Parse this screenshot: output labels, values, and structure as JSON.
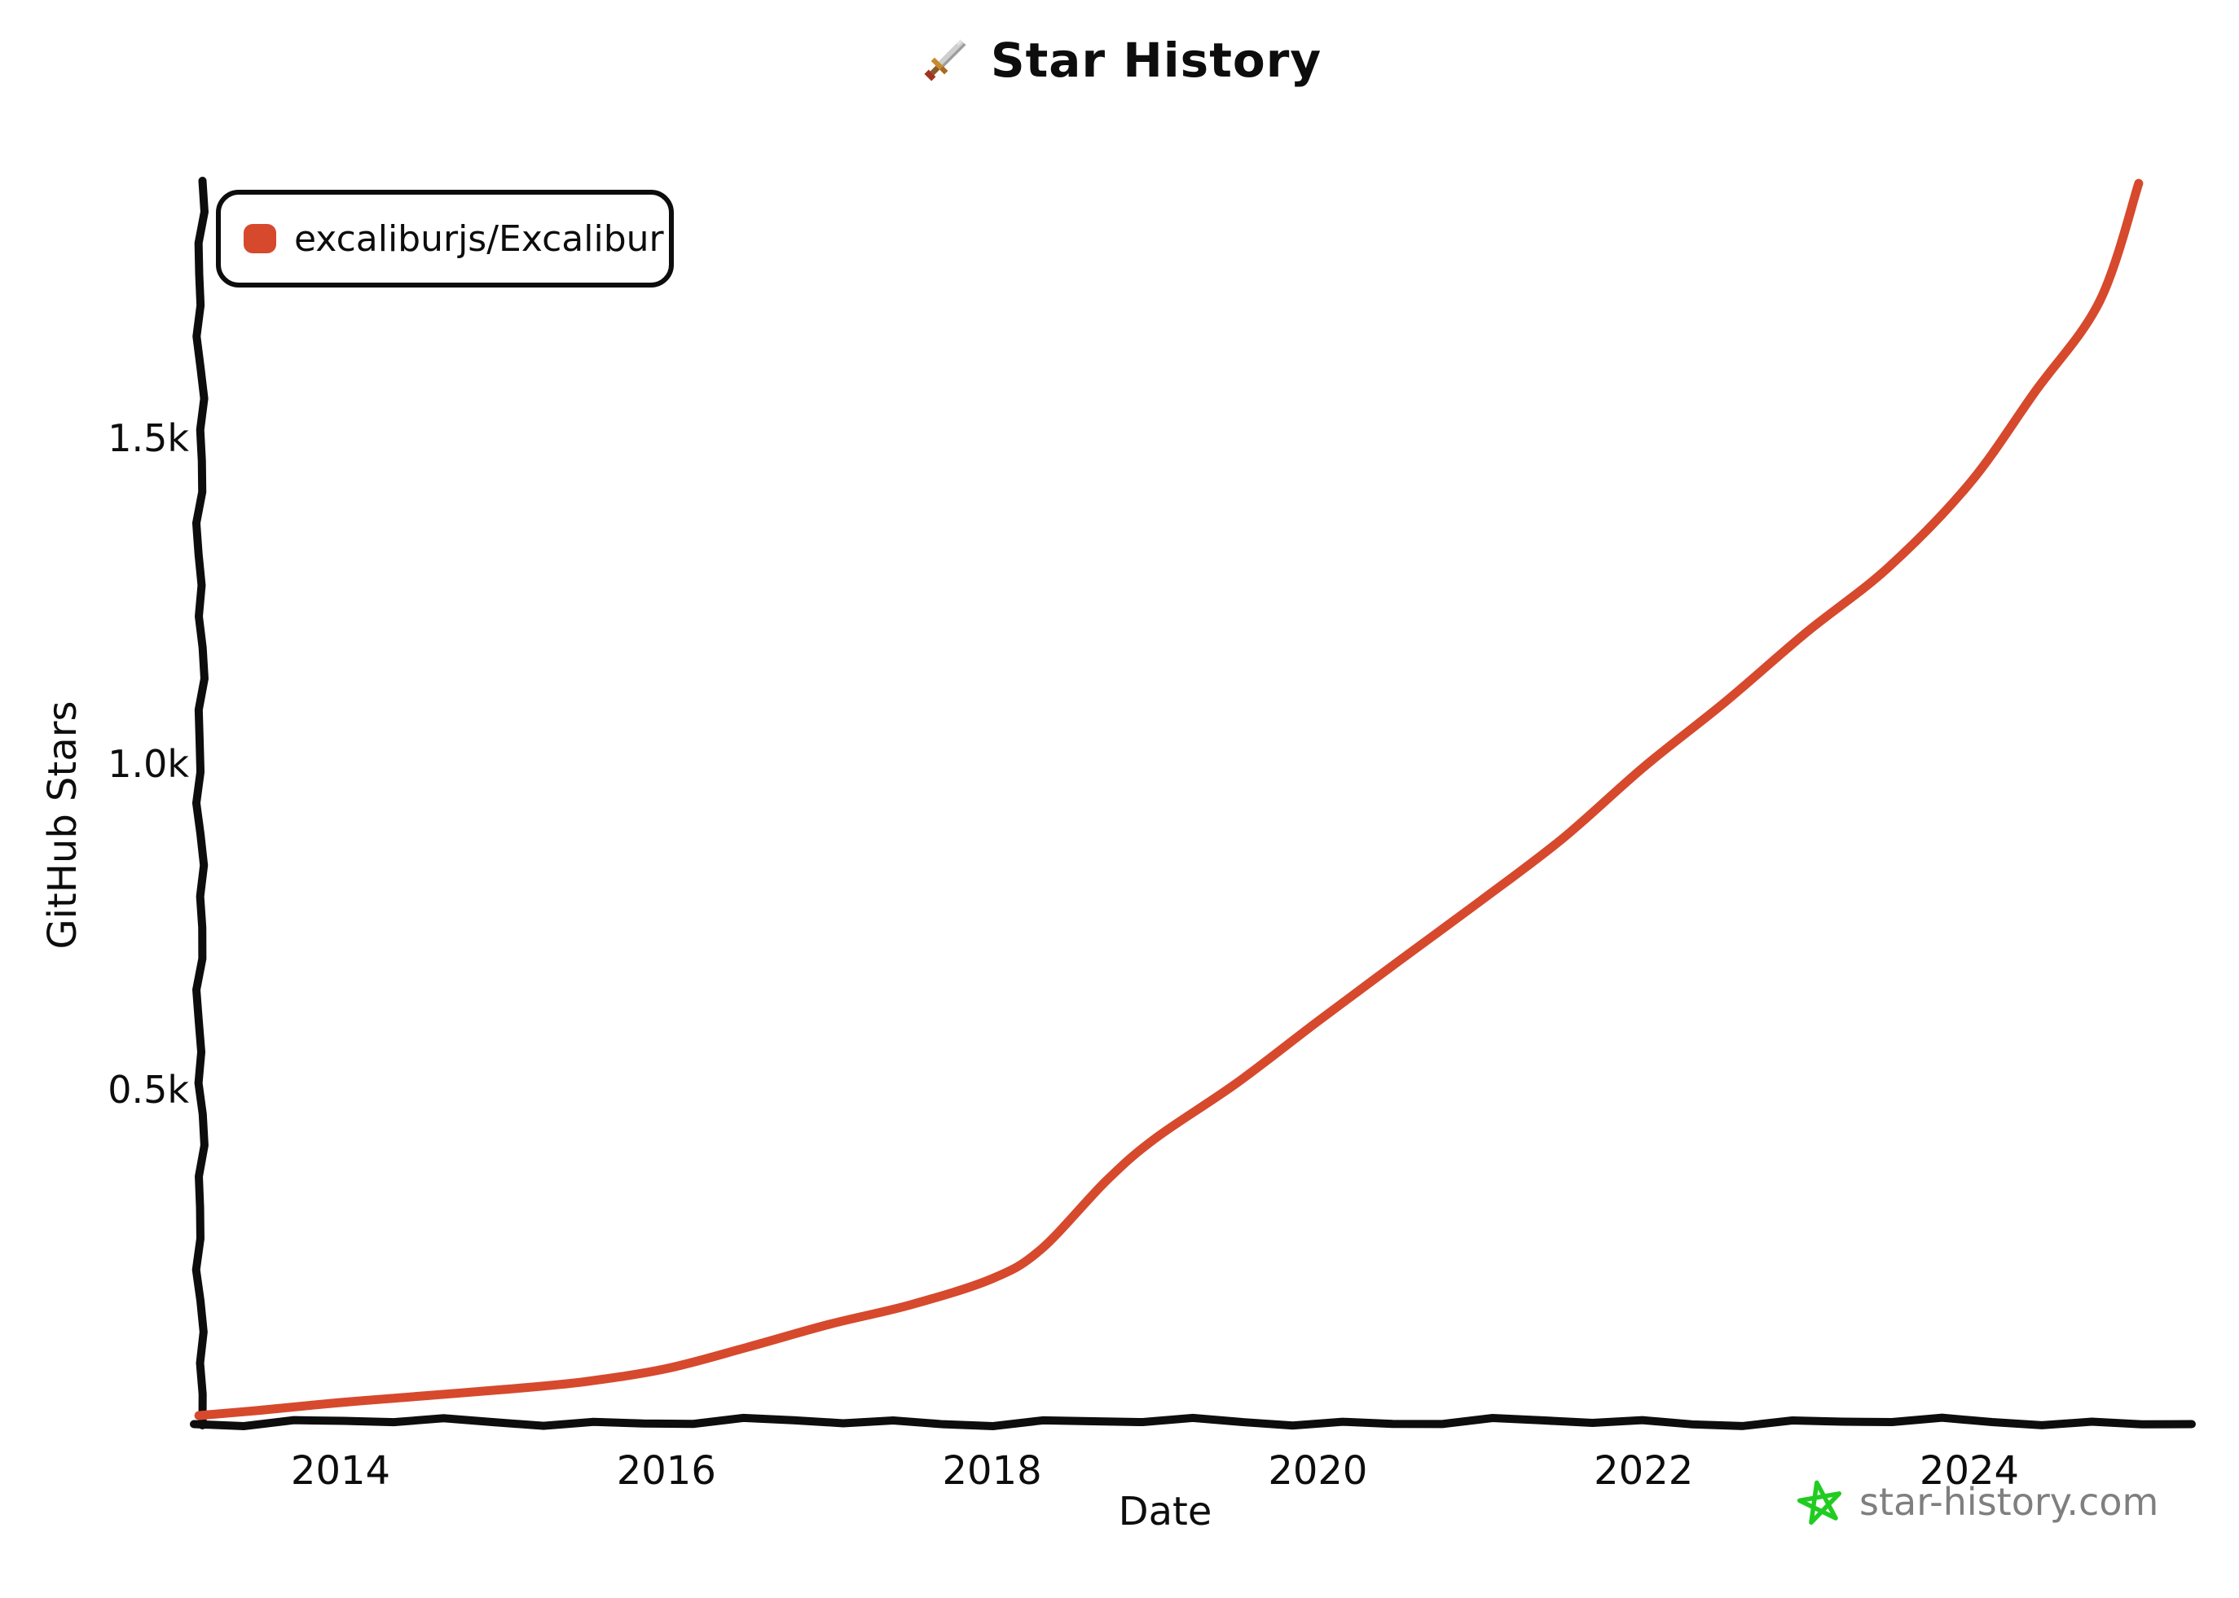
{
  "title": {
    "text": "Star History",
    "icon": "pixel-sword-icon"
  },
  "legend": {
    "items": [
      {
        "label": "excaliburjs/Excalibur",
        "color": "#d6492d"
      }
    ]
  },
  "watermark": {
    "text": "star-history.com",
    "icon": "hand-drawn-star-icon",
    "icon_color": "#21cc21",
    "text_color": "#7f7f7f"
  },
  "colors": {
    "axis": "#0d0d0d",
    "series_red": "#d6492d"
  },
  "chart_data": {
    "type": "line",
    "title": "Star History",
    "xlabel": "Date",
    "ylabel": "GitHub Stars",
    "grid": false,
    "legend_position": "top-left",
    "xlim": [
      2013.1,
      2025.4
    ],
    "ylim": [
      0,
      1960
    ],
    "x_ticks": [
      {
        "label": "2014",
        "year": 2014
      },
      {
        "label": "2016",
        "year": 2016
      },
      {
        "label": "2018",
        "year": 2018
      },
      {
        "label": "2020",
        "year": 2020
      },
      {
        "label": "2022",
        "year": 2022
      },
      {
        "label": "2024",
        "year": 2024
      }
    ],
    "y_ticks": [
      {
        "label": "0.5k",
        "value": 500
      },
      {
        "label": "1.0k",
        "value": 1000
      },
      {
        "label": "1.5k",
        "value": 1500
      }
    ],
    "series": [
      {
        "name": "excaliburjs/Excalibur",
        "color": "#d6492d",
        "points": [
          [
            2013.13,
            0
          ],
          [
            2013.5,
            8
          ],
          [
            2014.0,
            20
          ],
          [
            2014.5,
            30
          ],
          [
            2015.0,
            40
          ],
          [
            2015.5,
            52
          ],
          [
            2016.0,
            72
          ],
          [
            2016.5,
            105
          ],
          [
            2017.0,
            140
          ],
          [
            2017.5,
            170
          ],
          [
            2018.0,
            210
          ],
          [
            2018.3,
            255
          ],
          [
            2018.7,
            360
          ],
          [
            2019.0,
            425
          ],
          [
            2019.5,
            510
          ],
          [
            2020.0,
            605
          ],
          [
            2020.5,
            698
          ],
          [
            2021.0,
            790
          ],
          [
            2021.5,
            885
          ],
          [
            2022.0,
            995
          ],
          [
            2022.5,
            1095
          ],
          [
            2023.0,
            1202
          ],
          [
            2023.5,
            1301
          ],
          [
            2024.0,
            1430
          ],
          [
            2024.4,
            1570
          ],
          [
            2024.8,
            1710
          ],
          [
            2025.04,
            1891
          ]
        ]
      }
    ]
  }
}
